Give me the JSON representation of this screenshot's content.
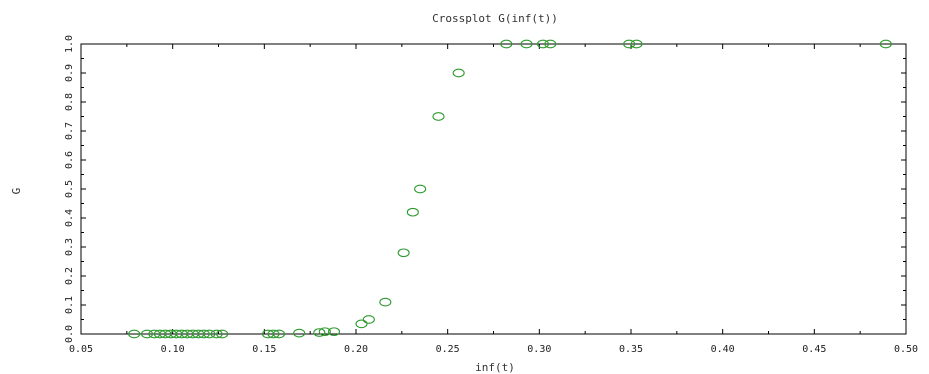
{
  "chart_data": {
    "type": "scatter",
    "title": "Crossplot G(inf(t))",
    "xlabel": "inf(t)",
    "ylabel": "G",
    "xlim": [
      0.05,
      0.5
    ],
    "ylim": [
      0.0,
      1.0
    ],
    "x_ticks": [
      "0.05",
      "0.10",
      "0.15",
      "0.20",
      "0.25",
      "0.30",
      "0.35",
      "0.40",
      "0.45",
      "0.50"
    ],
    "y_ticks": [
      "0.0",
      "0.1",
      "0.2",
      "0.3",
      "0.4",
      "0.5",
      "0.6",
      "0.7",
      "0.8",
      "0.9",
      "1.0"
    ],
    "grid": false,
    "marker": "open-circle",
    "color": "#2e9a2e",
    "points": [
      {
        "x": 0.079,
        "y": 0.0
      },
      {
        "x": 0.086,
        "y": 0.0
      },
      {
        "x": 0.09,
        "y": 0.0
      },
      {
        "x": 0.093,
        "y": 0.0
      },
      {
        "x": 0.096,
        "y": 0.0
      },
      {
        "x": 0.099,
        "y": 0.0
      },
      {
        "x": 0.102,
        "y": 0.0
      },
      {
        "x": 0.105,
        "y": 0.0
      },
      {
        "x": 0.108,
        "y": 0.0
      },
      {
        "x": 0.111,
        "y": 0.0
      },
      {
        "x": 0.114,
        "y": 0.0
      },
      {
        "x": 0.117,
        "y": 0.0
      },
      {
        "x": 0.12,
        "y": 0.0
      },
      {
        "x": 0.124,
        "y": 0.0
      },
      {
        "x": 0.127,
        "y": 0.0
      },
      {
        "x": 0.152,
        "y": 0.0
      },
      {
        "x": 0.155,
        "y": 0.0
      },
      {
        "x": 0.158,
        "y": 0.0
      },
      {
        "x": 0.169,
        "y": 0.003
      },
      {
        "x": 0.18,
        "y": 0.005
      },
      {
        "x": 0.183,
        "y": 0.008
      },
      {
        "x": 0.188,
        "y": 0.008
      },
      {
        "x": 0.203,
        "y": 0.035
      },
      {
        "x": 0.207,
        "y": 0.05
      },
      {
        "x": 0.216,
        "y": 0.11
      },
      {
        "x": 0.226,
        "y": 0.28
      },
      {
        "x": 0.231,
        "y": 0.42
      },
      {
        "x": 0.235,
        "y": 0.5
      },
      {
        "x": 0.245,
        "y": 0.75
      },
      {
        "x": 0.256,
        "y": 0.9
      },
      {
        "x": 0.282,
        "y": 1.0
      },
      {
        "x": 0.293,
        "y": 1.0
      },
      {
        "x": 0.302,
        "y": 1.0
      },
      {
        "x": 0.306,
        "y": 1.0
      },
      {
        "x": 0.349,
        "y": 1.0
      },
      {
        "x": 0.353,
        "y": 1.0
      },
      {
        "x": 0.489,
        "y": 1.0
      }
    ]
  }
}
